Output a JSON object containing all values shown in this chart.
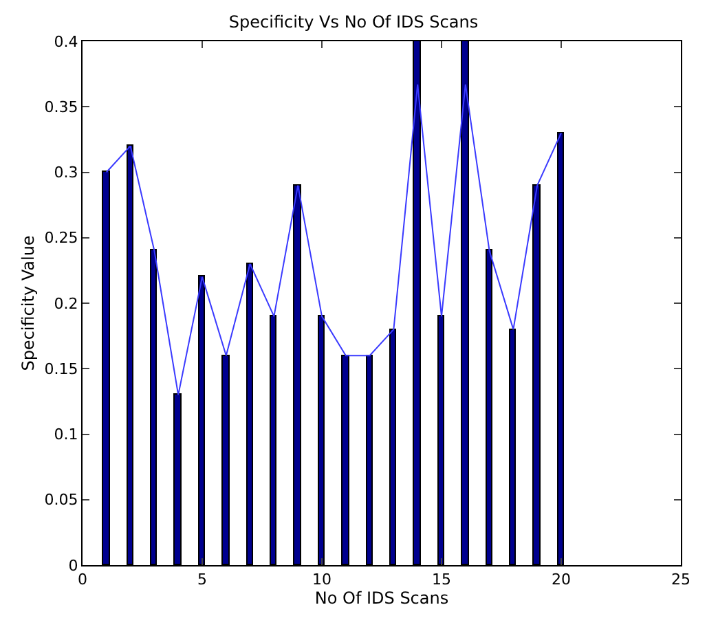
{
  "chart_data": {
    "type": "bar",
    "title": "Specificity Vs No Of IDS Scans",
    "xlabel": "No Of IDS Scans",
    "ylabel": "Specificity Value",
    "x": [
      1,
      2,
      3,
      4,
      5,
      6,
      7,
      8,
      9,
      10,
      11,
      12,
      13,
      14,
      15,
      16,
      17,
      18,
      19,
      20
    ],
    "series": [
      {
        "color": "#00008f",
        "values": [
          0.3,
          0.32,
          0.24,
          0.13,
          0.22,
          0.16,
          0.23,
          0.19,
          0.29,
          0.19,
          0.16,
          0.16,
          0.18,
          0.4,
          0.19,
          0.4,
          0.24,
          0.18,
          0.29,
          0.33
        ]
      },
      {
        "type": "line",
        "color": "#3a3aff",
        "values": [
          0.3,
          0.32,
          0.24,
          0.13,
          0.22,
          0.16,
          0.23,
          0.19,
          0.29,
          0.19,
          0.16,
          0.16,
          0.18,
          0.367,
          0.19,
          0.367,
          0.24,
          0.18,
          0.29,
          0.33
        ]
      }
    ],
    "xlim": [
      0,
      25
    ],
    "xticks": [
      0,
      5,
      10,
      15,
      20,
      25
    ],
    "ylim": [
      0,
      0.4
    ],
    "yticks": [
      0,
      0.05,
      0.1,
      0.15,
      0.2,
      0.25,
      0.3,
      0.35,
      0.4
    ],
    "line_style": "solid"
  }
}
